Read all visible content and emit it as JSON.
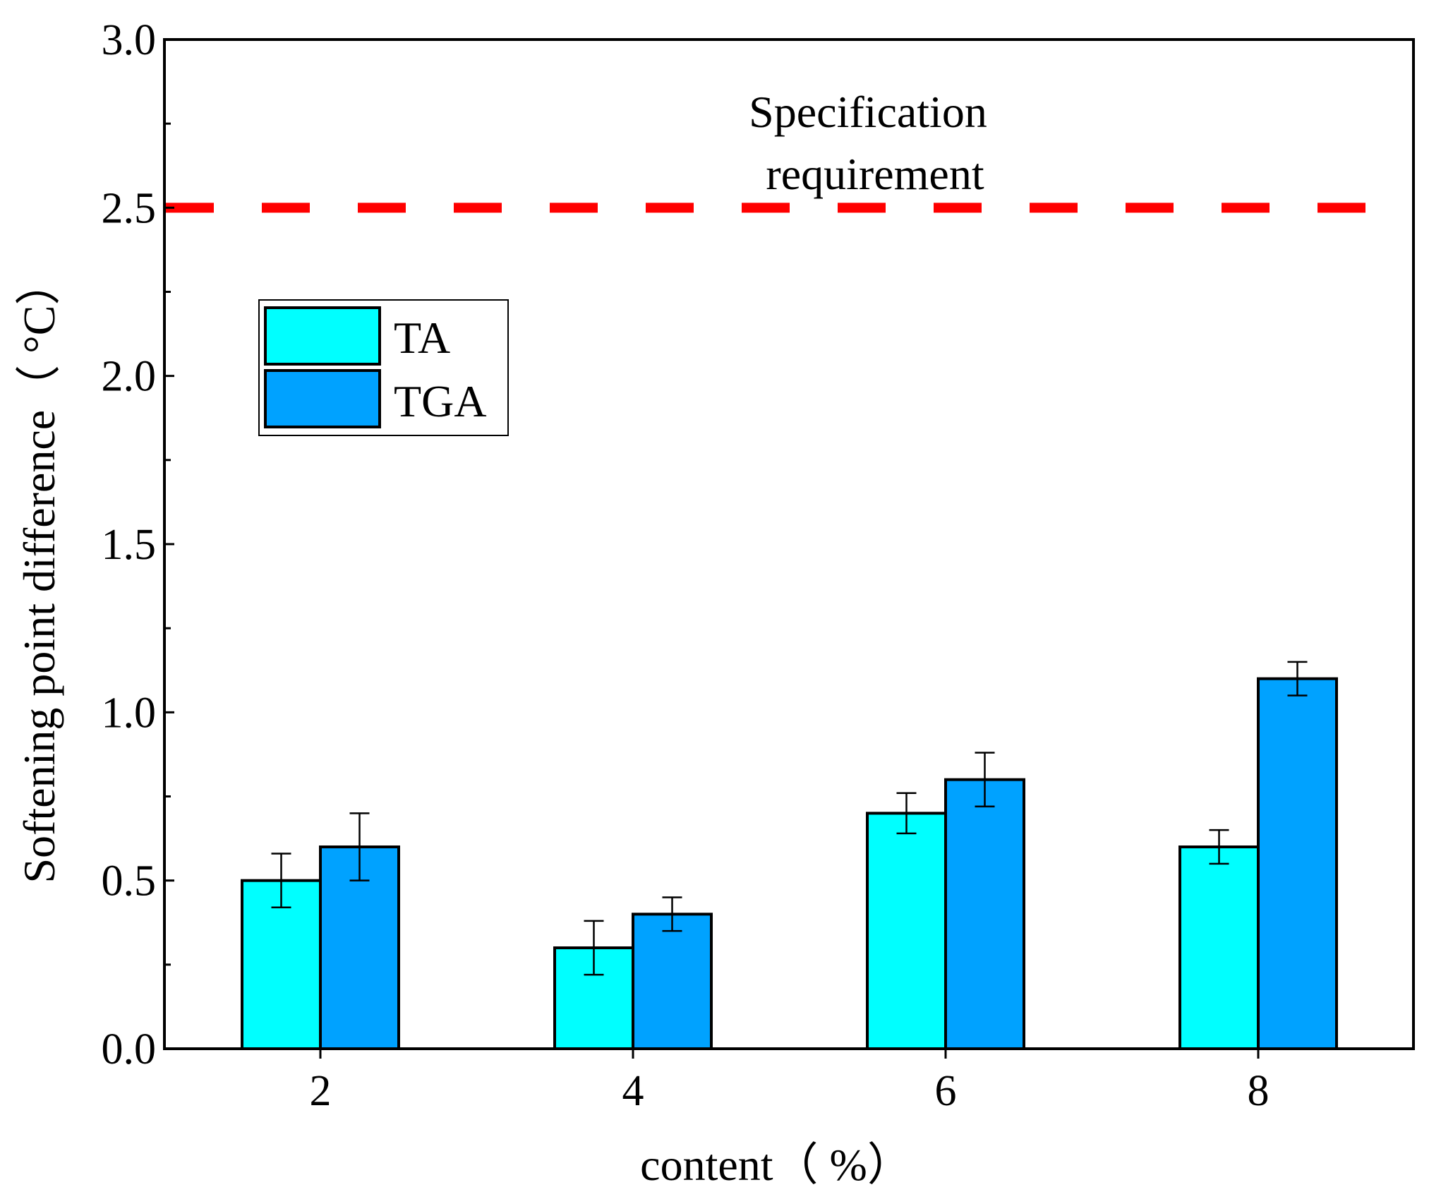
{
  "chart_data": {
    "type": "bar",
    "categories": [
      "2",
      "4",
      "6",
      "8"
    ],
    "series": [
      {
        "name": "TA",
        "values": [
          0.5,
          0.3,
          0.7,
          0.6
        ],
        "errors": [
          0.08,
          0.08,
          0.06,
          0.05
        ],
        "color": "#00FFFF"
      },
      {
        "name": "TGA",
        "values": [
          0.6,
          0.4,
          0.8,
          1.1
        ],
        "errors": [
          0.1,
          0.05,
          0.08,
          0.05
        ],
        "color": "#00A2FF"
      }
    ],
    "xlabel": "content（ %）",
    "ylabel": "Softening point difference（ °C）",
    "ylim": [
      0,
      3.0
    ],
    "yticks": [
      "0.0",
      "0.5",
      "1.0",
      "1.5",
      "2.0",
      "2.5",
      "3.0"
    ],
    "reference_line": {
      "value": 2.5,
      "label_line1": "Specification",
      "label_line2": "requirement",
      "color": "#FF0000"
    },
    "legend_position": "upper-left",
    "grid": false
  }
}
